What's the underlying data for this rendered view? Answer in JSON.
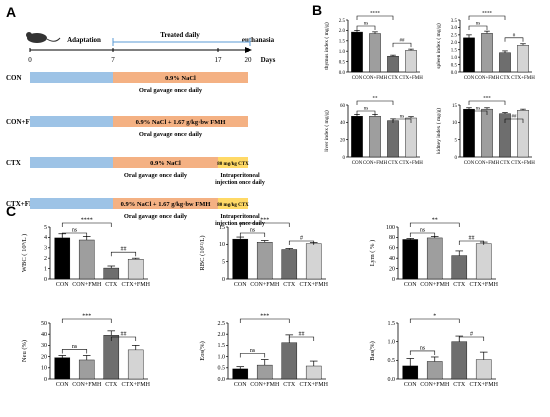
{
  "panels": {
    "a": "A",
    "b": "B",
    "c": "C"
  },
  "timeline": {
    "phase1": "Adaptation",
    "phase2": "Treated daily",
    "phase3": "euthanasia",
    "ticks": [
      "0",
      "7",
      "17",
      "20"
    ],
    "axis_label": "Days",
    "groups": [
      {
        "name": "CON",
        "bar1": "0.9% NaCl",
        "note1": "Oral gavage once daily",
        "bar2": "",
        "note2": ""
      },
      {
        "name": "CON+FMH",
        "bar1": "0.9% NaCl + 1.67 g/kg·bw FMH",
        "note1": "Oral gavage once daily",
        "bar2": "",
        "note2": ""
      },
      {
        "name": "CTX",
        "bar1": "0.9% NaCl",
        "note1": "Oral gavage once daily",
        "bar2": "80 mg/kg CTX",
        "note2": "Intraperitoneal injection once daily"
      },
      {
        "name": "CTX+FMH",
        "bar1": "0.9% NaCl + 1.67 g/kg·bw FMH",
        "note1": "Oral gavage once daily",
        "bar2": "80 mg/kg CTX",
        "note2": "Intraperitoneal injection once daily"
      }
    ],
    "colors": {
      "adapt": "#9dc3e6",
      "treat": "#f4b183",
      "ctx": "#ffd966"
    }
  },
  "chart_data": [
    {
      "type": "bar",
      "panel": "B",
      "ylabel": "thymus index ( mg/g)",
      "categories": [
        "CON",
        "CON+FMH",
        "CTX",
        "CTX+FMH"
      ],
      "values": [
        1.92,
        1.85,
        0.76,
        1.04
      ],
      "errors": [
        0.08,
        0.08,
        0.05,
        0.06
      ],
      "ylim": [
        0,
        2.5
      ],
      "ticks": [
        "0.0",
        "0.5",
        "1.0",
        "1.5",
        "2.0",
        "2.5"
      ],
      "sig": [
        {
          "from": 0,
          "to": 1,
          "label": "ns"
        },
        {
          "from": 0,
          "to": 2,
          "label": "****"
        },
        {
          "from": 2,
          "to": 3,
          "label": "##"
        }
      ]
    },
    {
      "type": "bar",
      "panel": "B",
      "ylabel": "spleen index ( mg/g)",
      "categories": [
        "CON",
        "CON+FMH",
        "CTX",
        "CTX+FMH"
      ],
      "values": [
        2.3,
        2.6,
        1.3,
        1.8
      ],
      "errors": [
        0.2,
        0.15,
        0.12,
        0.1
      ],
      "ylim": [
        0,
        3.5
      ],
      "ticks": [
        "0.0",
        "0.5",
        "1.0",
        "1.5",
        "2.0",
        "2.5",
        "3.0",
        "3.5"
      ],
      "sig": [
        {
          "from": 0,
          "to": 1,
          "label": "ns"
        },
        {
          "from": 0,
          "to": 2,
          "label": "****"
        },
        {
          "from": 2,
          "to": 3,
          "label": "#"
        }
      ]
    },
    {
      "type": "bar",
      "panel": "B",
      "ylabel": "liver index ( mg/g)",
      "categories": [
        "CON",
        "CON+FMH",
        "CTX",
        "CTX+FMH"
      ],
      "values": [
        47,
        47,
        42,
        45
      ],
      "errors": [
        2,
        2,
        2,
        1.5
      ],
      "ylim": [
        0,
        60
      ],
      "ticks": [
        "0",
        "20",
        "40",
        "60"
      ],
      "sig": [
        {
          "from": 0,
          "to": 1,
          "label": "ns"
        },
        {
          "from": 0,
          "to": 2,
          "label": "**"
        },
        {
          "from": 2,
          "to": 3,
          "label": "ns"
        }
      ]
    },
    {
      "type": "bar",
      "panel": "B",
      "ylabel": "kidney index ( mg/g)",
      "categories": [
        "CON",
        "CON+FMH",
        "CTX",
        "CTX+FMH"
      ],
      "values": [
        13.8,
        13.8,
        12.5,
        13.5
      ],
      "errors": [
        0.4,
        0.4,
        0.3,
        0.3
      ],
      "ylim": [
        0,
        15
      ],
      "ticks": [
        "0",
        "5",
        "10",
        "15"
      ],
      "sig": [
        {
          "from": 0,
          "to": 1,
          "label": "ns"
        },
        {
          "from": 0,
          "to": 2,
          "label": "***"
        },
        {
          "from": 2,
          "to": 3,
          "label": "##"
        }
      ]
    },
    {
      "type": "bar",
      "panel": "C",
      "ylabel": "WBC ( 10⁹/L )",
      "categories": [
        "CON",
        "CON+FMH",
        "CTX",
        "CTX+FMH"
      ],
      "values": [
        3.95,
        3.75,
        1.05,
        1.9
      ],
      "errors": [
        0.4,
        0.35,
        0.2,
        0.1
      ],
      "ylim": [
        0,
        5
      ],
      "ticks": [
        "0",
        "1",
        "2",
        "3",
        "4",
        "5"
      ],
      "sig": [
        {
          "from": 0,
          "to": 1,
          "label": "ns"
        },
        {
          "from": 0,
          "to": 2,
          "label": "****"
        },
        {
          "from": 2,
          "to": 3,
          "label": "##"
        }
      ]
    },
    {
      "type": "bar",
      "panel": "C",
      "ylabel": "RBC (10¹²/L)",
      "categories": [
        "CON",
        "CON+FMH",
        "CTX",
        "CTX+FMH"
      ],
      "values": [
        11.5,
        10.6,
        8.5,
        10.2
      ],
      "errors": [
        0.6,
        0.5,
        0.3,
        0.3
      ],
      "ylim": [
        0,
        15
      ],
      "ticks": [
        "0",
        "5",
        "10",
        "15"
      ],
      "sig": [
        {
          "from": 0,
          "to": 1,
          "label": "ns"
        },
        {
          "from": 0,
          "to": 2,
          "label": "***"
        },
        {
          "from": 2,
          "to": 3,
          "label": "#"
        }
      ]
    },
    {
      "type": "bar",
      "panel": "C",
      "ylabel": "Lym ( % )",
      "categories": [
        "CON",
        "CON+FMH",
        "CTX",
        "CTX+FMH"
      ],
      "values": [
        76,
        79,
        45,
        68
      ],
      "errors": [
        2,
        3,
        9,
        3
      ],
      "ylim": [
        0,
        100
      ],
      "ticks": [
        "0",
        "20",
        "40",
        "60",
        "80",
        "100"
      ],
      "sig": [
        {
          "from": 0,
          "to": 1,
          "label": "ns"
        },
        {
          "from": 0,
          "to": 2,
          "label": "**"
        },
        {
          "from": 2,
          "to": 3,
          "label": "##"
        }
      ]
    },
    {
      "type": "bar",
      "panel": "C",
      "ylabel": "Neu (%)",
      "categories": [
        "CON",
        "CON+FMH",
        "CTX",
        "CTX+FMH"
      ],
      "values": [
        19,
        17,
        39,
        26
      ],
      "errors": [
        2,
        4,
        4,
        4
      ],
      "ylim": [
        0,
        50
      ],
      "ticks": [
        "0",
        "10",
        "20",
        "30",
        "40",
        "50"
      ],
      "sig": [
        {
          "from": 0,
          "to": 1,
          "label": "ns"
        },
        {
          "from": 0,
          "to": 2,
          "label": "***"
        },
        {
          "from": 2,
          "to": 3,
          "label": "##"
        }
      ]
    },
    {
      "type": "bar",
      "panel": "C",
      "ylabel": "Eos(%)",
      "categories": [
        "CON",
        "CON+FMH",
        "CTX",
        "CTX+FMH"
      ],
      "values": [
        0.45,
        0.62,
        1.62,
        0.58
      ],
      "errors": [
        0.1,
        0.25,
        0.35,
        0.22
      ],
      "ylim": [
        0,
        2.5
      ],
      "ticks": [
        "0.0",
        "0.5",
        "1.0",
        "1.5",
        "2.0",
        "2.5"
      ],
      "sig": [
        {
          "from": 0,
          "to": 1,
          "label": "ns"
        },
        {
          "from": 0,
          "to": 2,
          "label": "***"
        },
        {
          "from": 2,
          "to": 3,
          "label": "##"
        }
      ]
    },
    {
      "type": "bar",
      "panel": "C",
      "ylabel": "Bas(%)",
      "categories": [
        "CON",
        "CON+FMH",
        "CTX",
        "CTX+FMH"
      ],
      "values": [
        0.35,
        0.47,
        1.0,
        0.52
      ],
      "errors": [
        0.2,
        0.12,
        0.15,
        0.2
      ],
      "ylim": [
        0,
        1.5
      ],
      "ticks": [
        "0.0",
        "0.5",
        "1.0",
        "1.5"
      ],
      "sig": [
        {
          "from": 0,
          "to": 1,
          "label": "ns"
        },
        {
          "from": 0,
          "to": 2,
          "label": "*"
        },
        {
          "from": 2,
          "to": 3,
          "label": "#"
        }
      ]
    }
  ],
  "bar_colors": [
    "#000000",
    "#9e9e9e",
    "#6e6e6e",
    "#d4d4d4"
  ]
}
